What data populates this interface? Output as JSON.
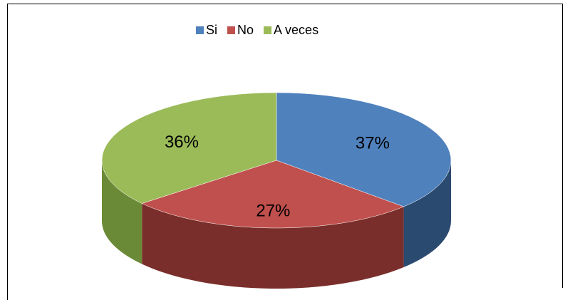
{
  "chart_data": {
    "type": "pie",
    "categories": [
      "Si",
      "No",
      "A veces"
    ],
    "values": [
      37,
      27,
      36
    ],
    "value_labels": [
      "37%",
      "27%",
      "36%"
    ],
    "colors": [
      "#4f81bd",
      "#c0504d",
      "#9bbb59"
    ],
    "side_colors": [
      "#2b4a70",
      "#7a2e2b",
      "#6b8a37"
    ],
    "legend": "top"
  }
}
